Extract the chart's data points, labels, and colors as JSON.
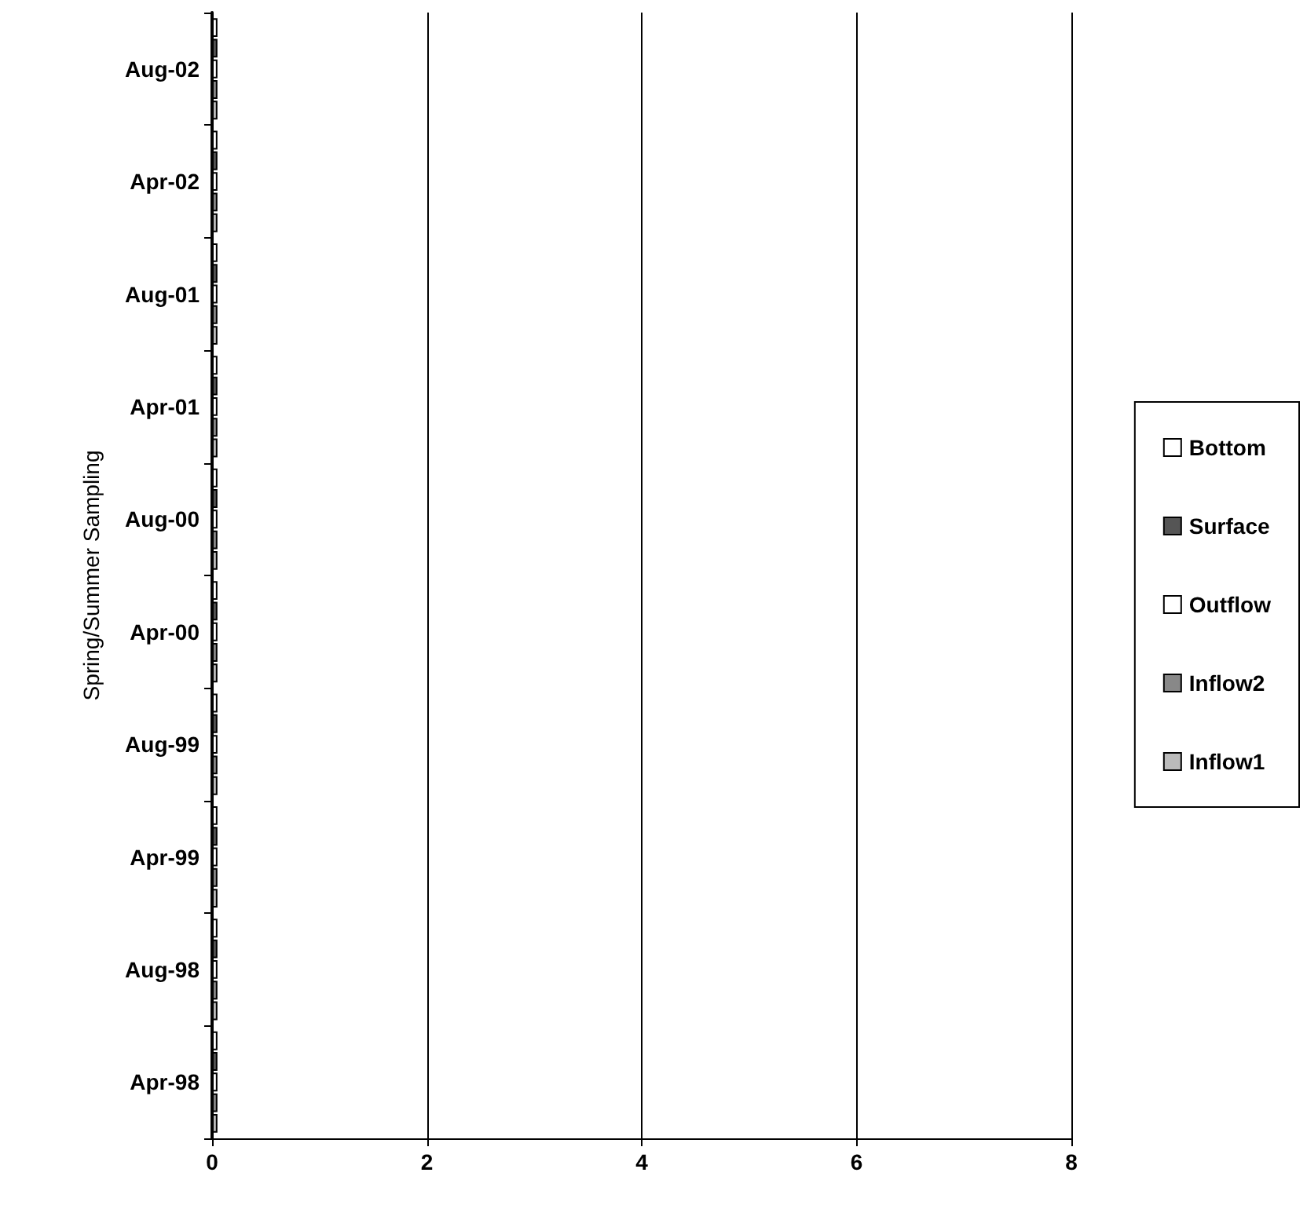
{
  "chart_data": {
    "type": "bar",
    "orientation": "horizontal",
    "ylabel": "Spring/Summer Sampling",
    "categories": [
      "Aug-02",
      "Apr-02",
      "Aug-01",
      "Apr-01",
      "Aug-00",
      "Apr-00",
      "Aug-99",
      "Apr-99",
      "Aug-98",
      "Apr-98"
    ],
    "series": [
      {
        "name": "Bottom",
        "color": "#ffffff",
        "values": [
          0.05,
          0.05,
          0.05,
          0.05,
          0.05,
          0.05,
          0.05,
          0.05,
          0.05,
          0.05
        ]
      },
      {
        "name": "Surface",
        "color": "#555555",
        "values": [
          0.05,
          0.05,
          0.05,
          0.05,
          0.05,
          0.05,
          0.05,
          0.05,
          0.05,
          0.05
        ]
      },
      {
        "name": "Outflow",
        "color": "#ffffff",
        "values": [
          0.05,
          0.05,
          0.05,
          0.05,
          0.05,
          0.05,
          0.05,
          0.05,
          0.05,
          0.05
        ]
      },
      {
        "name": "Inflow2",
        "color": "#888888",
        "values": [
          0.05,
          0.05,
          0.05,
          0.05,
          0.05,
          0.05,
          0.05,
          0.05,
          0.05,
          0.05
        ]
      },
      {
        "name": "Inflow1",
        "color": "#bbbbbb",
        "values": [
          0.05,
          0.05,
          0.05,
          0.05,
          0.05,
          0.05,
          0.05,
          0.05,
          0.05,
          0.05
        ]
      }
    ],
    "xlim": [
      0,
      8
    ],
    "xticks": [
      0,
      2,
      4,
      6,
      8
    ],
    "grid": "x",
    "legend": "right"
  }
}
